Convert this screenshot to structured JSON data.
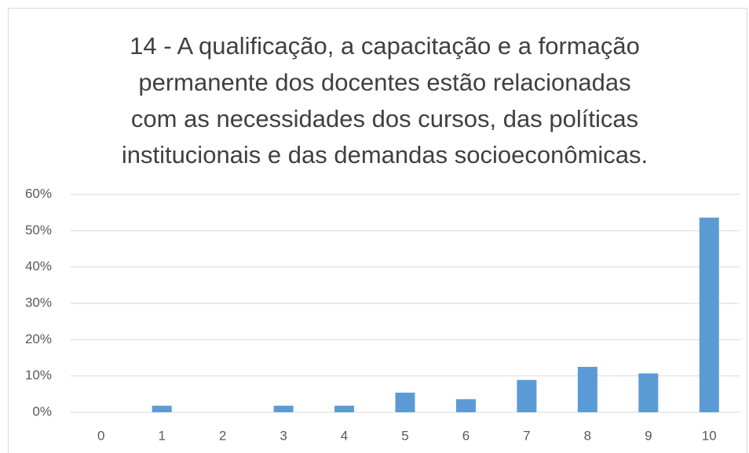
{
  "chart_data": {
    "type": "bar",
    "title": [
      "14 - A qualificação, a capacitação e a formação",
      "permanente dos docentes estão relacionadas",
      "com as necessidades dos cursos, das políticas",
      "institucionais e das demandas socioeconômicas."
    ],
    "categories": [
      "0",
      "1",
      "2",
      "3",
      "4",
      "5",
      "6",
      "7",
      "8",
      "9",
      "10"
    ],
    "values": [
      0,
      1.8,
      0,
      1.8,
      1.8,
      5.4,
      3.6,
      8.9,
      12.5,
      10.7,
      53.6
    ],
    "color": "#5b9bd5",
    "ylim": [
      0,
      60
    ],
    "yticks": [
      {
        "value": 0,
        "label": "0%"
      },
      {
        "value": 10,
        "label": "10%"
      },
      {
        "value": 20,
        "label": "20%"
      },
      {
        "value": 30,
        "label": "30%"
      },
      {
        "value": 40,
        "label": "40%"
      },
      {
        "value": 50,
        "label": "50%"
      },
      {
        "value": 60,
        "label": "60%"
      }
    ],
    "grid": true
  }
}
